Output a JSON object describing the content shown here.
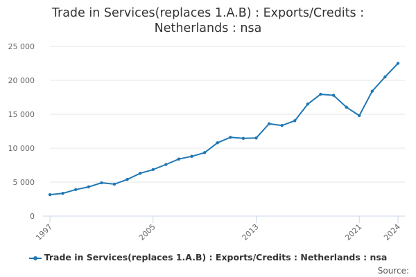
{
  "chart_data": {
    "type": "line",
    "title": "Trade in Services(replaces 1.A.B) : Exports/Credits : Netherlands : nsa",
    "xlabel": "",
    "ylabel": "",
    "x": [
      1997,
      1998,
      1999,
      2000,
      2001,
      2002,
      2003,
      2004,
      2005,
      2006,
      2007,
      2008,
      2009,
      2010,
      2011,
      2012,
      2013,
      2014,
      2015,
      2016,
      2017,
      2018,
      2019,
      2020,
      2021,
      2022,
      2023,
      2024
    ],
    "series": [
      {
        "name": "Trade in Services(replaces 1.A.B) : Exports/Credits : Netherlands : nsa",
        "color": "#1f77b4",
        "values": [
          3150,
          3350,
          3900,
          4300,
          4900,
          4700,
          5400,
          6300,
          6850,
          7600,
          8400,
          8800,
          9350,
          10800,
          11600,
          11450,
          11500,
          13600,
          13350,
          14050,
          16500,
          17950,
          17800,
          16050,
          14800,
          18400,
          20500,
          22500
        ]
      }
    ],
    "ylim": [
      0,
      25000
    ],
    "yticks": [
      0,
      5000,
      10000,
      15000,
      20000,
      25000
    ],
    "ytick_labels": [
      "0",
      "5 000",
      "10 000",
      "15 000",
      "20 000",
      "25 000"
    ],
    "xticks": [
      1997,
      2005,
      2013,
      2021,
      2024
    ],
    "xtick_labels": [
      "1997",
      "2005",
      "2013",
      "2021",
      "2024"
    ],
    "grid": "horizontal",
    "legend": "bottom"
  },
  "credits": "Source:"
}
